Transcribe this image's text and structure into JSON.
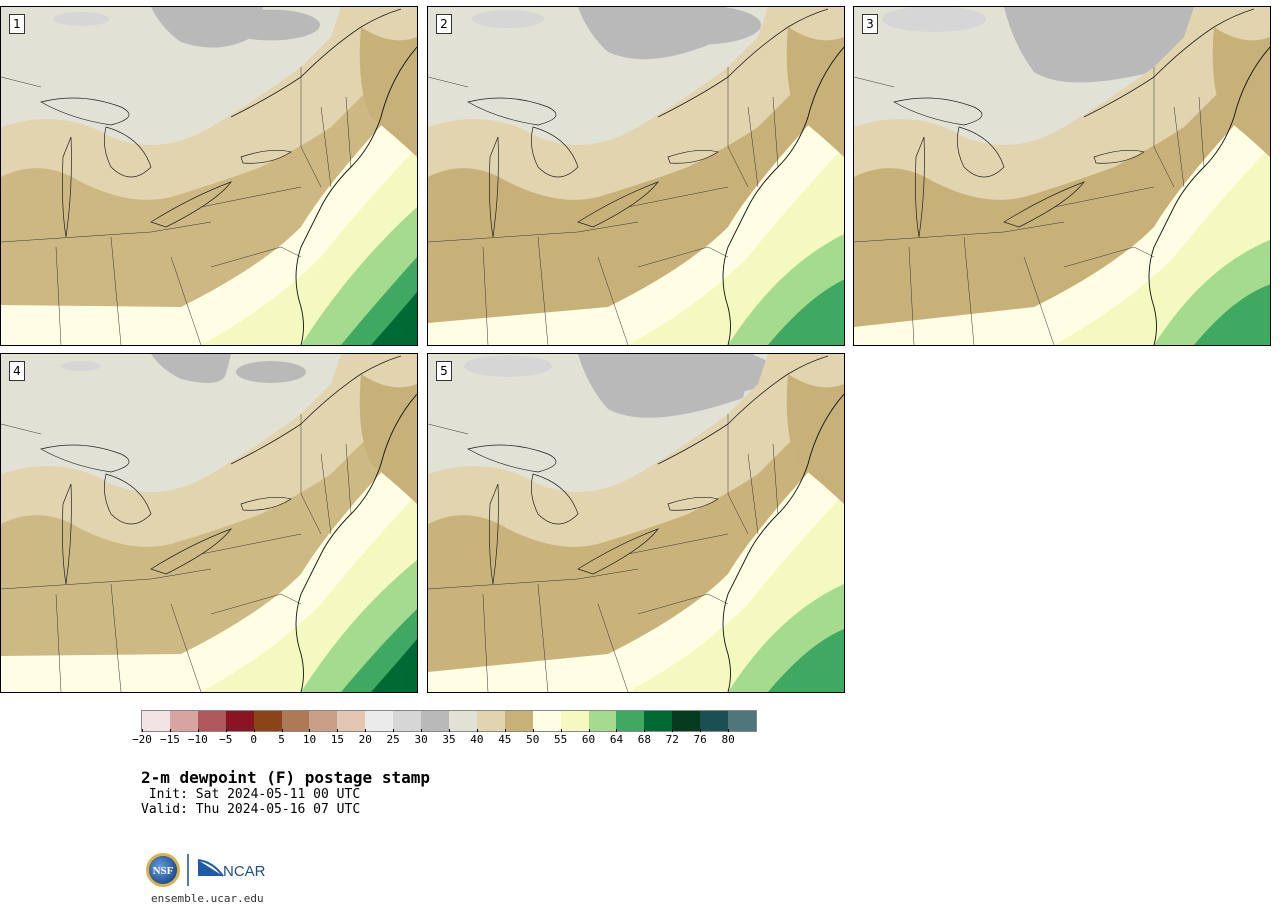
{
  "panels": [
    {
      "label": "1"
    },
    {
      "label": "2"
    },
    {
      "label": "3"
    },
    {
      "label": "4"
    },
    {
      "label": "5"
    }
  ],
  "colorbar": {
    "ticks": [
      "−20",
      "−15",
      "−10",
      "−5",
      "0",
      "5",
      "10",
      "15",
      "20",
      "25",
      "30",
      "35",
      "40",
      "45",
      "50",
      "55",
      "60",
      "64",
      "68",
      "72",
      "76",
      "80"
    ],
    "colors": [
      "#f2e4e3",
      "#d7a4a2",
      "#ad585b",
      "#8a1421",
      "#8a4418",
      "#ad7957",
      "#c89f87",
      "#e3c6b4",
      "#ebebeb",
      "#d6d6d6",
      "#b9b9b9",
      "#e1e1d6",
      "#e2d4ae",
      "#c8b179",
      "#fefee5",
      "#f4f9bf",
      "#a5db8f",
      "#3fa861",
      "#006a35",
      "#063b20",
      "#1b4f54",
      "#4f777b"
    ]
  },
  "title": "2-m dewpoint (F) postage stamp",
  "init": " Init: Sat 2024-05-11 00 UTC",
  "valid": "Valid: Thu 2024-05-16 07 UTC",
  "logos": {
    "nsf": "NSF",
    "ncar": "NCAR"
  },
  "footer": "ensemble.ucar.edu"
}
